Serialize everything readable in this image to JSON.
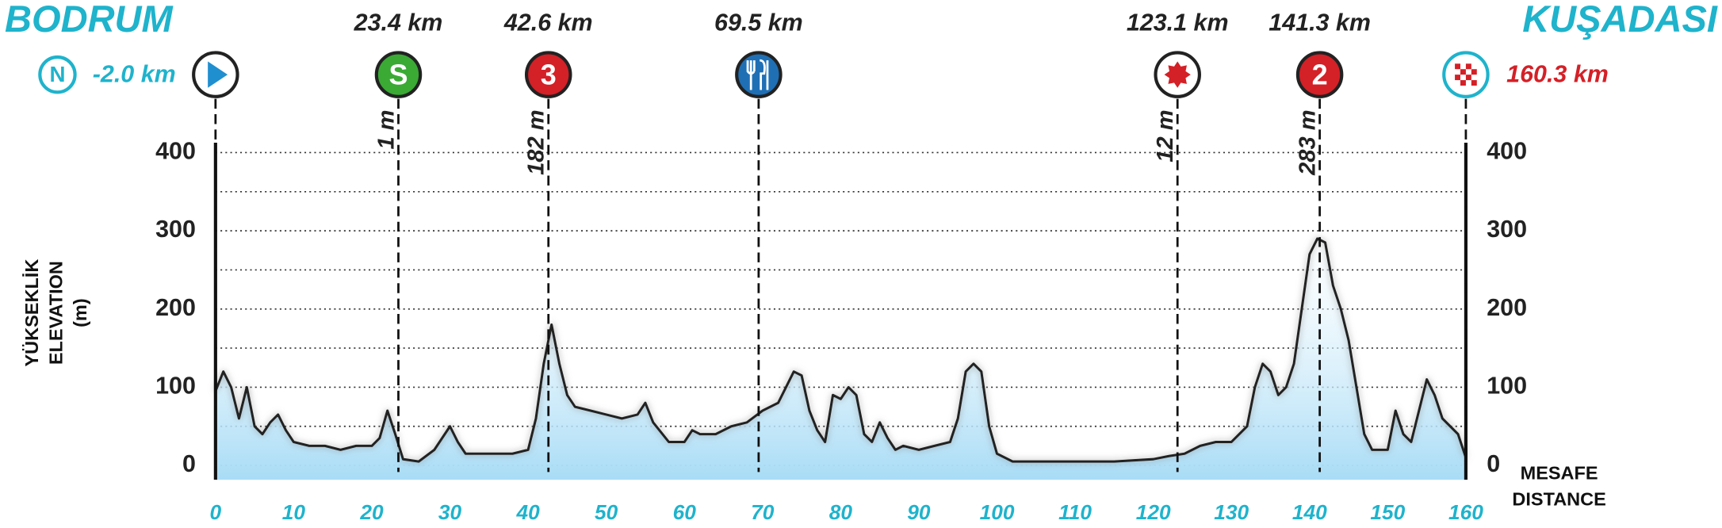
{
  "chart_data": {
    "type": "area",
    "start": {
      "name": "BODRUM",
      "neutral": "N",
      "label": "-2.0 km"
    },
    "finish": {
      "name": "KUŞADASI",
      "label": "160.3 km"
    },
    "y_axis_label": [
      "YÜKSEKLİK",
      "ELEVATION",
      "(m)"
    ],
    "x_axis_label": [
      "MESAFE",
      "DISTANCE"
    ],
    "markers": [
      {
        "km": 23.4,
        "label": "23.4 km",
        "elevation_label": "1 m",
        "icon": "S",
        "color": "#3aaa35"
      },
      {
        "km": 42.6,
        "label": "42.6 km",
        "elevation_label": "182 m",
        "icon": "3",
        "color": "#d42027"
      },
      {
        "km": 69.5,
        "label": "69.5 km",
        "icon": "food",
        "color": "#1f6fb5"
      },
      {
        "km": 123.1,
        "label": "123.1 km",
        "elevation_label": "12 m",
        "icon": "star",
        "color": "#d42027"
      },
      {
        "km": 141.3,
        "label": "141.3 km",
        "elevation_label": "283 m",
        "icon": "2",
        "color": "#d42027"
      }
    ],
    "x": [
      0,
      1,
      2,
      3,
      4,
      5,
      6,
      7,
      8,
      9,
      10,
      12,
      14,
      16,
      18,
      20,
      21,
      22,
      23,
      24,
      26,
      28,
      30,
      31,
      32,
      34,
      36,
      38,
      40,
      41,
      42,
      43,
      44,
      45,
      46,
      48,
      50,
      52,
      54,
      55,
      56,
      58,
      60,
      61,
      62,
      64,
      66,
      68,
      70,
      72,
      73,
      74,
      75,
      76,
      77,
      78,
      79,
      80,
      81,
      82,
      83,
      84,
      85,
      86,
      87,
      88,
      90,
      92,
      94,
      95,
      96,
      97,
      98,
      99,
      100,
      102,
      105,
      110,
      115,
      120,
      122,
      124,
      126,
      128,
      130,
      132,
      133,
      134,
      135,
      136,
      137,
      138,
      139,
      140,
      141,
      142,
      143,
      144,
      145,
      146,
      147,
      148,
      150,
      151,
      152,
      153,
      154,
      155,
      156,
      157,
      158,
      159,
      160
    ],
    "values": [
      95,
      120,
      100,
      60,
      100,
      50,
      40,
      55,
      65,
      45,
      30,
      25,
      25,
      20,
      25,
      25,
      35,
      70,
      40,
      8,
      5,
      20,
      50,
      30,
      15,
      15,
      15,
      15,
      20,
      60,
      130,
      180,
      130,
      90,
      75,
      70,
      65,
      60,
      65,
      80,
      55,
      30,
      30,
      45,
      40,
      40,
      50,
      55,
      70,
      80,
      100,
      120,
      115,
      70,
      45,
      30,
      90,
      85,
      100,
      90,
      40,
      30,
      55,
      35,
      20,
      25,
      20,
      25,
      30,
      60,
      120,
      130,
      120,
      50,
      15,
      5,
      5,
      5,
      5,
      8,
      12,
      15,
      25,
      30,
      30,
      50,
      100,
      130,
      120,
      90,
      100,
      130,
      200,
      270,
      290,
      285,
      230,
      200,
      160,
      100,
      40,
      20,
      20,
      70,
      40,
      30,
      70,
      110,
      90,
      60,
      50,
      40,
      10
    ],
    "xlim": [
      0,
      160
    ],
    "xticks": [
      0,
      10,
      20,
      30,
      40,
      50,
      60,
      70,
      80,
      90,
      100,
      110,
      120,
      130,
      140,
      150,
      160
    ],
    "ylim": [
      0,
      400
    ],
    "yticks": [
      0,
      100,
      200,
      300,
      400
    ],
    "yminor": [
      50,
      150,
      250,
      350
    ],
    "grid": true,
    "color": "#222222",
    "fill": "#a8dcf6",
    "title_color": "#1fb3cc"
  }
}
